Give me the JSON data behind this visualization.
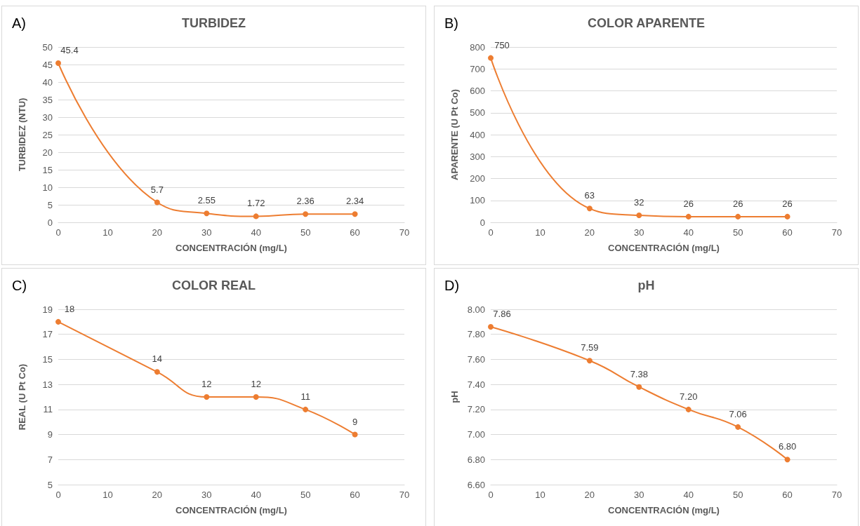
{
  "chart_data": [
    {
      "type": "line",
      "title": "TURBIDEZ",
      "xlabel": "CONCENTRACIÓN (mg/L)",
      "ylabel": "TURBIDEZ (NTU)",
      "annotations": [
        "A)"
      ],
      "x": [
        0,
        20,
        30,
        40,
        50,
        60
      ],
      "values": [
        45.4,
        5.7,
        2.55,
        1.72,
        2.36,
        2.34
      ],
      "value_labels": [
        "45.4",
        "5.7",
        "2.55",
        "1.72",
        "2.36",
        "2.34"
      ],
      "color": "#ed7d31",
      "marker": "circle",
      "grid": "y",
      "xlim": [
        0,
        70
      ],
      "xticks": [
        0,
        10,
        20,
        30,
        40,
        50,
        60,
        70
      ],
      "ylim": [
        0,
        50
      ],
      "yticks": [
        0,
        5,
        10,
        15,
        20,
        25,
        30,
        35,
        40,
        45,
        50
      ]
    },
    {
      "type": "line",
      "title": "COLOR APARENTE",
      "xlabel": "CONCENTRACIÓN (mg/L)",
      "ylabel": "APARENTE (U Pt Co)",
      "annotations": [
        "B)"
      ],
      "x": [
        0,
        20,
        30,
        40,
        50,
        60
      ],
      "values": [
        750,
        63,
        32,
        26,
        26,
        26
      ],
      "value_labels": [
        "750",
        "63",
        "32",
        "26",
        "26",
        "26"
      ],
      "color": "#ed7d31",
      "marker": "circle",
      "grid": "y",
      "xlim": [
        0,
        70
      ],
      "xticks": [
        0,
        10,
        20,
        30,
        40,
        50,
        60,
        70
      ],
      "ylim": [
        0,
        800
      ],
      "yticks": [
        0,
        100,
        200,
        300,
        400,
        500,
        600,
        700,
        800
      ]
    },
    {
      "type": "line",
      "title": "COLOR REAL",
      "xlabel": "CONCENTRACIÓN (mg/L)",
      "ylabel": "REAL (U Pt Co)",
      "annotations": [
        "C)"
      ],
      "x": [
        0,
        20,
        30,
        40,
        50,
        60
      ],
      "values": [
        18,
        14,
        12,
        12,
        11,
        9
      ],
      "value_labels": [
        "18",
        "14",
        "12",
        "12",
        "11",
        "9"
      ],
      "color": "#ed7d31",
      "marker": "circle",
      "grid": "y",
      "xlim": [
        0,
        70
      ],
      "xticks": [
        0,
        10,
        20,
        30,
        40,
        50,
        60,
        70
      ],
      "ylim": [
        5,
        19
      ],
      "yticks": [
        5,
        7,
        9,
        11,
        13,
        15,
        17,
        19
      ]
    },
    {
      "type": "line",
      "title": "pH",
      "xlabel": "CONCENTRACIÓN (mg/L)",
      "ylabel": "pH",
      "annotations": [
        "D)"
      ],
      "x": [
        0,
        20,
        30,
        40,
        50,
        60
      ],
      "values": [
        7.86,
        7.59,
        7.38,
        7.2,
        7.06,
        6.8
      ],
      "value_labels": [
        "7.86",
        "7.59",
        "7.38",
        "7.20",
        "7.06",
        "6.80"
      ],
      "color": "#ed7d31",
      "marker": "circle",
      "grid": "y",
      "xlim": [
        0,
        70
      ],
      "xticks": [
        0,
        10,
        20,
        30,
        40,
        50,
        60,
        70
      ],
      "ylim": [
        6.6,
        8.0
      ],
      "yticks": [
        {
          "value": 6.6,
          "label": "6.60"
        },
        {
          "value": 6.8,
          "label": "6.80"
        },
        {
          "value": 7.0,
          "label": "7.00"
        },
        {
          "value": 7.2,
          "label": "7.20"
        },
        {
          "value": 7.4,
          "label": "7.40"
        },
        {
          "value": 7.6,
          "label": "7.60"
        },
        {
          "value": 7.8,
          "label": "7.80"
        },
        {
          "value": 8.0,
          "label": "8.00"
        }
      ]
    }
  ]
}
